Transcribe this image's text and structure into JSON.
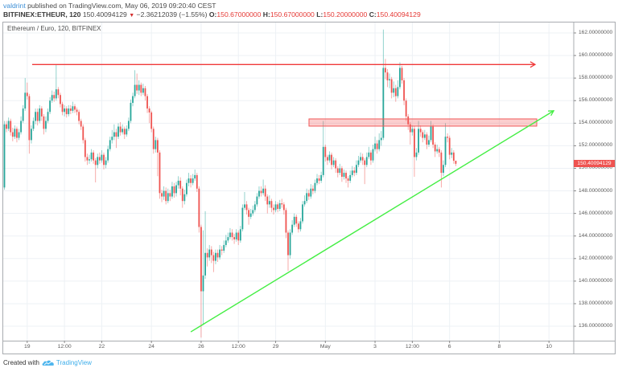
{
  "header": {
    "author": "valdrint",
    "published_text": " published on TradingView.com, May 06, 2019 09:20:40 CEST",
    "symbol_interval": "BITFINEX:ETHEUR, 120",
    "last": "150.40094129",
    "change_icon": "down-triangle",
    "change_glyph": "▼",
    "change": "−2.36212039 (−1.55%)",
    "o_label": "O:",
    "o_value": "150.67000000",
    "h_label": "H:",
    "h_value": "150.67000000",
    "l_label": "L:",
    "l_value": "150.20000000",
    "c_label": "C:",
    "c_value": "150.40094129"
  },
  "chart": {
    "title": "Ethereum / Euro, 120, BITFINEX",
    "last_price_label": "150.40094129"
  },
  "footer": {
    "created_with": "Created with",
    "brand": "TradingView",
    "brand_icon": "tradingview-cloud-icon"
  },
  "chart_data": {
    "type": "candlestick",
    "title": "Ethereum / Euro, 120, BITFINEX",
    "symbol": "BITFINEX:ETHEUR",
    "interval": "120",
    "xlabel": "",
    "ylabel": "",
    "ylim": [
      134.7,
      163.1
    ],
    "grid": true,
    "y_ticks": [
      162,
      160,
      158,
      156,
      154,
      152,
      150,
      148,
      146,
      144,
      142,
      140,
      138,
      136
    ],
    "y_tick_labels": [
      "162.00000000",
      "160.00000000",
      "158.00000000",
      "156.00000000",
      "154.00000000",
      "152.00000000",
      "150.00000000",
      "148.00000000",
      "146.00000000",
      "144.00000000",
      "142.00000000",
      "140.00000000",
      "138.00000000",
      "136.00000000"
    ],
    "x_ticks": [
      {
        "label": "19",
        "index": 11
      },
      {
        "label": "12:00",
        "index": 29
      },
      {
        "label": "22",
        "index": 47
      },
      {
        "label": "24",
        "index": 71
      },
      {
        "label": "26",
        "index": 95
      },
      {
        "label": "12:00",
        "index": 113
      },
      {
        "label": "29",
        "index": 131
      },
      {
        "label": "May",
        "index": 155
      },
      {
        "label": "3",
        "index": 179
      },
      {
        "label": "12:00",
        "index": 197
      },
      {
        "label": "6",
        "index": 215
      },
      {
        "label": "8",
        "index": 239
      },
      {
        "label": "10",
        "index": 263
      }
    ],
    "last_price": 150.40094129,
    "colors": {
      "up": "#26a69a",
      "down": "#ef5350",
      "resistance": "#f03a3a",
      "support": "#44ee44",
      "zone_fill": "rgba(244,80,80,0.28)",
      "zone_border": "#f05a5a"
    },
    "annotations": [
      {
        "kind": "horizontal-ray",
        "name": "resistance-line",
        "price": 159.2,
        "from_index": 13.4,
        "to_index": 256.3,
        "arrow": true
      },
      {
        "kind": "rectangle",
        "name": "resistance-zone",
        "price_top": 154.38,
        "price_bottom": 153.74,
        "from_index": 147.1,
        "to_index": 257.1
      },
      {
        "kind": "trend-line",
        "name": "support-trendline",
        "from_index": 90.0,
        "from_price": 135.5,
        "to_index": 265.3,
        "to_price": 155.1,
        "arrow": true
      }
    ],
    "candles_format": [
      "open",
      "high",
      "low",
      "close"
    ],
    "candles": [
      [
        148.3,
        154.2,
        148.1,
        153.9
      ],
      [
        153.9,
        154.2,
        153.2,
        153.5
      ],
      [
        153.5,
        154.5,
        153.3,
        154.2
      ],
      [
        154.2,
        154.4,
        152.9,
        153.2
      ],
      [
        153.2,
        153.6,
        152.4,
        152.8
      ],
      [
        152.8,
        153.8,
        152.6,
        153.5
      ],
      [
        153.5,
        153.7,
        152.3,
        152.7
      ],
      [
        152.7,
        153.5,
        152.5,
        153.2
      ],
      [
        153.2,
        154.6,
        153.0,
        154.2
      ],
      [
        154.2,
        155.6,
        154.0,
        155.3
      ],
      [
        155.3,
        158.0,
        155.1,
        156.7
      ],
      [
        156.7,
        157.6,
        156.1,
        156.4
      ],
      [
        156.4,
        156.6,
        151.3,
        152.5
      ],
      [
        152.5,
        153.8,
        152.2,
        153.5
      ],
      [
        153.5,
        154.5,
        153.3,
        154.2
      ],
      [
        154.2,
        155.3,
        153.9,
        155.0
      ],
      [
        155.0,
        155.3,
        153.8,
        154.2
      ],
      [
        154.2,
        155.6,
        154.0,
        155.3
      ],
      [
        155.3,
        155.5,
        154.2,
        154.6
      ],
      [
        154.6,
        154.8,
        153.0,
        153.5
      ],
      [
        153.5,
        154.6,
        153.2,
        154.2
      ],
      [
        154.2,
        155.3,
        154.0,
        155.0
      ],
      [
        155.0,
        156.3,
        154.8,
        156.0
      ],
      [
        156.0,
        156.9,
        155.8,
        156.5
      ],
      [
        156.5,
        156.8,
        155.9,
        156.2
      ],
      [
        156.2,
        159.2,
        156.0,
        157.0
      ],
      [
        157.0,
        157.2,
        156.2,
        156.5
      ],
      [
        156.5,
        156.7,
        155.4,
        155.7
      ],
      [
        155.7,
        155.9,
        154.7,
        155.0
      ],
      [
        155.0,
        155.6,
        154.6,
        155.3
      ],
      [
        155.3,
        155.5,
        154.5,
        154.8
      ],
      [
        154.8,
        155.6,
        154.6,
        155.3
      ],
      [
        155.3,
        155.6,
        154.8,
        155.1
      ],
      [
        155.1,
        155.9,
        154.9,
        155.5
      ],
      [
        155.5,
        155.7,
        154.9,
        155.2
      ],
      [
        155.2,
        155.4,
        154.7,
        155.0
      ],
      [
        155.0,
        155.2,
        153.9,
        154.2
      ],
      [
        154.2,
        154.4,
        153.4,
        153.7
      ],
      [
        153.7,
        153.9,
        152.2,
        152.5
      ],
      [
        152.5,
        152.7,
        150.6,
        151.0
      ],
      [
        151.0,
        151.3,
        150.3,
        150.7
      ],
      [
        150.7,
        151.2,
        150.4,
        150.8
      ],
      [
        150.8,
        151.7,
        150.6,
        151.4
      ],
      [
        151.4,
        151.6,
        150.4,
        150.7
      ],
      [
        150.7,
        150.9,
        148.75,
        150.3
      ],
      [
        150.3,
        151.3,
        150.0,
        151.0
      ],
      [
        151.0,
        151.4,
        150.4,
        150.7
      ],
      [
        150.7,
        151.6,
        150.5,
        151.2
      ],
      [
        151.2,
        151.4,
        149.9,
        150.3
      ],
      [
        150.3,
        151.0,
        150.0,
        150.7
      ],
      [
        150.7,
        152.0,
        150.5,
        151.7
      ],
      [
        151.7,
        152.8,
        151.5,
        152.5
      ],
      [
        152.5,
        153.4,
        152.2,
        152.8
      ],
      [
        152.8,
        153.9,
        152.5,
        153.2
      ],
      [
        153.2,
        153.5,
        151.8,
        152.8
      ],
      [
        152.8,
        154.0,
        152.6,
        153.7
      ],
      [
        153.7,
        154.1,
        152.9,
        153.2
      ],
      [
        153.2,
        153.9,
        153.0,
        153.5
      ],
      [
        153.5,
        153.7,
        152.6,
        153.0
      ],
      [
        153.0,
        153.8,
        152.8,
        153.5
      ],
      [
        153.5,
        154.5,
        153.3,
        154.2
      ],
      [
        154.2,
        156.1,
        154.0,
        155.8
      ],
      [
        155.8,
        156.7,
        155.5,
        156.4
      ],
      [
        156.4,
        158.7,
        156.2,
        157.4
      ],
      [
        157.4,
        158.4,
        156.6,
        156.9
      ],
      [
        156.9,
        157.8,
        156.5,
        157.4
      ],
      [
        157.4,
        157.6,
        156.4,
        156.7
      ],
      [
        156.7,
        157.5,
        156.5,
        157.1
      ],
      [
        157.1,
        157.3,
        156.0,
        156.4
      ],
      [
        156.4,
        156.6,
        154.9,
        155.3
      ],
      [
        155.3,
        155.5,
        154.0,
        154.95
      ],
      [
        154.95,
        155.1,
        153.2,
        153.5
      ],
      [
        153.5,
        153.7,
        151.3,
        151.7
      ],
      [
        151.7,
        152.8,
        151.4,
        152.5
      ],
      [
        152.5,
        152.7,
        149.3,
        151.4
      ],
      [
        151.4,
        151.6,
        147.3,
        147.8
      ],
      [
        147.8,
        148.1,
        147.0,
        147.5
      ],
      [
        147.5,
        148.4,
        147.2,
        148.0
      ],
      [
        148.0,
        148.3,
        146.8,
        147.1
      ],
      [
        147.1,
        148.2,
        146.9,
        147.8
      ],
      [
        147.8,
        148.1,
        147.1,
        147.5
      ],
      [
        147.5,
        148.8,
        147.3,
        148.4
      ],
      [
        148.4,
        148.7,
        147.4,
        147.8
      ],
      [
        147.8,
        148.8,
        147.5,
        148.5
      ],
      [
        148.5,
        149.3,
        148.2,
        148.9
      ],
      [
        148.9,
        149.2,
        147.6,
        148.2
      ],
      [
        148.2,
        148.4,
        146.5,
        147.1
      ],
      [
        147.1,
        148.1,
        146.8,
        147.7
      ],
      [
        147.7,
        149.0,
        147.5,
        148.7
      ],
      [
        148.7,
        149.6,
        148.4,
        149.1
      ],
      [
        149.1,
        149.4,
        148.3,
        148.7
      ],
      [
        148.7,
        149.5,
        148.5,
        149.1
      ],
      [
        149.1,
        149.9,
        148.9,
        149.4
      ],
      [
        149.4,
        149.6,
        147.9,
        148.2
      ],
      [
        148.2,
        148.4,
        144.3,
        144.8
      ],
      [
        144.8,
        145.0,
        135.0,
        139.1
      ],
      [
        139.1,
        144.5,
        136.2,
        140.5
      ],
      [
        140.5,
        146.2,
        140.2,
        142.5
      ],
      [
        142.5,
        142.9,
        141.3,
        142.1
      ],
      [
        142.1,
        143.2,
        141.8,
        142.8
      ],
      [
        142.8,
        143.1,
        141.6,
        142.3
      ],
      [
        142.3,
        142.6,
        140.8,
        141.8
      ],
      [
        141.8,
        142.8,
        141.5,
        142.5
      ],
      [
        142.5,
        142.8,
        141.7,
        142.1
      ],
      [
        142.1,
        143.2,
        141.9,
        142.8
      ],
      [
        142.8,
        143.1,
        142.3,
        142.7
      ],
      [
        142.7,
        143.6,
        142.5,
        143.2
      ],
      [
        143.2,
        144.1,
        143.0,
        143.6
      ],
      [
        143.6,
        144.3,
        143.4,
        143.9
      ],
      [
        143.9,
        144.7,
        143.7,
        144.3
      ],
      [
        144.3,
        144.6,
        143.6,
        143.9
      ],
      [
        143.9,
        144.2,
        143.3,
        143.7
      ],
      [
        143.7,
        144.6,
        143.5,
        144.3
      ],
      [
        144.3,
        144.5,
        143.2,
        143.6
      ],
      [
        143.6,
        144.9,
        143.4,
        144.6
      ],
      [
        144.6,
        146.8,
        144.4,
        146.5
      ],
      [
        146.5,
        147.9,
        146.3,
        146.8
      ],
      [
        146.8,
        147.1,
        145.9,
        146.3
      ],
      [
        146.3,
        146.5,
        145.0,
        145.7
      ],
      [
        145.7,
        146.4,
        145.5,
        146.0
      ],
      [
        146.0,
        146.7,
        145.8,
        146.3
      ],
      [
        146.3,
        147.1,
        146.1,
        146.8
      ],
      [
        146.8,
        147.8,
        146.6,
        147.5
      ],
      [
        147.5,
        148.4,
        147.3,
        148.0
      ],
      [
        148.0,
        148.4,
        147.5,
        147.8
      ],
      [
        147.8,
        149.0,
        147.6,
        148.2
      ],
      [
        148.2,
        148.5,
        147.1,
        147.5
      ],
      [
        147.5,
        147.7,
        146.0,
        146.8
      ],
      [
        146.8,
        147.6,
        146.5,
        147.1
      ],
      [
        147.1,
        147.3,
        146.1,
        146.5
      ],
      [
        146.5,
        146.8,
        145.9,
        146.3
      ],
      [
        146.3,
        147.1,
        146.1,
        146.8
      ],
      [
        146.8,
        147.0,
        146.1,
        146.4
      ],
      [
        146.4,
        147.2,
        146.2,
        146.9
      ],
      [
        146.9,
        147.3,
        146.5,
        146.8
      ],
      [
        146.8,
        147.0,
        145.9,
        146.3
      ],
      [
        146.3,
        146.5,
        143.8,
        144.3
      ],
      [
        144.3,
        144.5,
        140.9,
        142.3
      ],
      [
        142.3,
        144.6,
        142.0,
        144.3
      ],
      [
        144.3,
        145.4,
        144.1,
        145.0
      ],
      [
        145.0,
        146.0,
        144.8,
        145.7
      ],
      [
        145.7,
        145.9,
        144.8,
        145.1
      ],
      [
        145.1,
        145.3,
        144.3,
        144.6
      ],
      [
        144.6,
        145.6,
        144.4,
        145.3
      ],
      [
        145.3,
        147.1,
        145.1,
        146.8
      ],
      [
        146.8,
        147.6,
        146.6,
        147.1
      ],
      [
        147.1,
        148.2,
        146.9,
        147.8
      ],
      [
        147.8,
        148.1,
        147.2,
        147.5
      ],
      [
        147.5,
        148.6,
        147.3,
        148.2
      ],
      [
        148.2,
        148.5,
        147.7,
        148.0
      ],
      [
        148.0,
        149.0,
        147.8,
        148.7
      ],
      [
        148.7,
        149.5,
        148.5,
        149.1
      ],
      [
        149.1,
        149.4,
        148.6,
        148.9
      ],
      [
        148.9,
        149.7,
        148.7,
        149.4
      ],
      [
        149.4,
        154.2,
        149.2,
        151.9
      ],
      [
        151.9,
        152.1,
        150.6,
        151.0
      ],
      [
        151.0,
        151.2,
        150.3,
        150.7
      ],
      [
        150.7,
        151.5,
        150.5,
        151.2
      ],
      [
        151.2,
        151.4,
        149.9,
        150.3
      ],
      [
        150.3,
        151.0,
        150.1,
        150.7
      ],
      [
        150.7,
        150.9,
        149.6,
        150.0
      ],
      [
        150.0,
        150.2,
        149.2,
        149.6
      ],
      [
        149.6,
        150.4,
        149.4,
        150.0
      ],
      [
        150.0,
        150.2,
        148.8,
        149.25
      ],
      [
        149.25,
        149.9,
        149.0,
        149.6
      ],
      [
        149.6,
        149.8,
        148.7,
        149.1
      ],
      [
        149.1,
        149.3,
        148.3,
        148.9
      ],
      [
        148.9,
        149.8,
        148.7,
        149.4
      ],
      [
        149.4,
        150.2,
        149.2,
        149.8
      ],
      [
        149.8,
        150.1,
        149.3,
        149.6
      ],
      [
        149.6,
        150.7,
        149.4,
        150.3
      ],
      [
        150.3,
        151.1,
        150.1,
        150.7
      ],
      [
        150.7,
        151.4,
        150.5,
        151.0
      ],
      [
        151.0,
        151.3,
        150.3,
        150.7
      ],
      [
        150.7,
        150.9,
        148.6,
        150.3
      ],
      [
        150.3,
        151.4,
        150.1,
        151.0
      ],
      [
        151.0,
        151.9,
        150.8,
        151.4
      ],
      [
        151.4,
        151.6,
        150.3,
        150.7
      ],
      [
        150.7,
        152.1,
        150.5,
        151.7
      ],
      [
        151.7,
        152.8,
        151.5,
        152.2
      ],
      [
        152.2,
        152.5,
        151.3,
        151.7
      ],
      [
        151.7,
        153.1,
        151.5,
        152.5
      ],
      [
        152.5,
        153.3,
        152.0,
        152.7
      ],
      [
        152.7,
        162.3,
        152.5,
        158.9
      ],
      [
        158.9,
        159.7,
        157.9,
        158.5
      ],
      [
        158.5,
        158.8,
        157.2,
        157.8
      ],
      [
        157.8,
        158.4,
        157.1,
        157.9
      ],
      [
        157.9,
        158.1,
        156.2,
        156.7
      ],
      [
        156.7,
        157.7,
        156.3,
        157.1
      ],
      [
        157.1,
        157.4,
        155.9,
        156.4
      ],
      [
        156.4,
        157.8,
        156.2,
        157.2
      ],
      [
        157.2,
        159.4,
        157.0,
        158.9
      ],
      [
        158.9,
        159.1,
        157.5,
        157.8
      ],
      [
        157.8,
        158.0,
        155.6,
        156.0
      ],
      [
        156.0,
        156.2,
        154.2,
        154.6
      ],
      [
        154.6,
        154.8,
        153.4,
        153.9
      ],
      [
        153.9,
        154.1,
        152.1,
        153.2
      ],
      [
        153.2,
        153.8,
        152.9,
        153.5
      ],
      [
        153.5,
        153.7,
        149.25,
        151.0
      ],
      [
        151.0,
        151.8,
        150.7,
        151.4
      ],
      [
        151.4,
        154.2,
        151.2,
        153.5
      ],
      [
        153.5,
        153.8,
        152.8,
        153.2
      ],
      [
        153.2,
        153.4,
        152.3,
        152.7
      ],
      [
        152.7,
        153.4,
        152.5,
        153.0
      ],
      [
        153.0,
        153.2,
        151.7,
        152.1
      ],
      [
        152.1,
        152.9,
        151.9,
        152.5
      ],
      [
        152.5,
        154.2,
        152.3,
        153.7
      ],
      [
        153.7,
        153.9,
        151.8,
        152.1
      ],
      [
        152.1,
        152.3,
        151.0,
        151.5
      ],
      [
        151.5,
        152.1,
        151.3,
        151.7
      ],
      [
        151.7,
        151.9,
        151.0,
        151.4
      ],
      [
        151.4,
        151.6,
        148.3,
        149.6
      ],
      [
        149.6,
        150.7,
        149.3,
        150.3
      ],
      [
        150.3,
        154.0,
        150.1,
        152.8
      ],
      [
        152.8,
        153.1,
        152.3,
        152.7
      ],
      [
        152.7,
        152.9,
        150.8,
        151.2
      ],
      [
        151.2,
        151.8,
        150.9,
        151.4
      ],
      [
        151.4,
        151.6,
        150.4,
        150.67
      ],
      [
        150.67,
        150.67,
        150.2,
        150.40094129
      ]
    ]
  }
}
